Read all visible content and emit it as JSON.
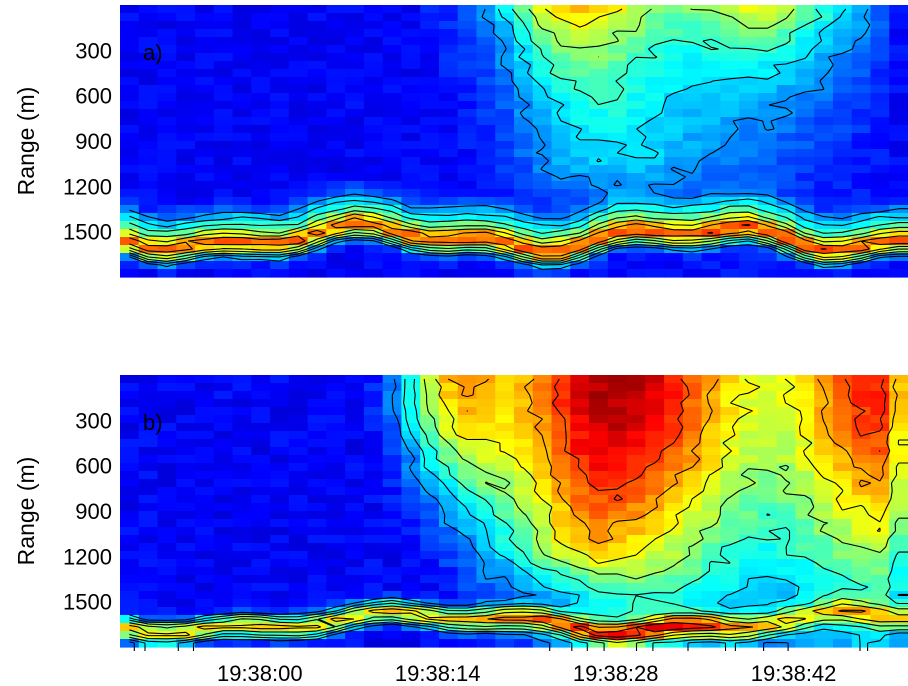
{
  "chart_data": [
    {
      "type": "heatmap",
      "panel_label": "a)",
      "ylabel": "Range (m)",
      "xlabel": "",
      "y_ticks": [
        300,
        600,
        900,
        1200,
        1500
      ],
      "ylim": [
        1800,
        0
      ],
      "x_ticks": [],
      "colormap": "jet",
      "contours": true,
      "grid": false,
      "legend": "none"
    },
    {
      "type": "heatmap",
      "panel_label": "b)",
      "ylabel": "Range (m)",
      "xlabel": "",
      "y_ticks": [
        300,
        600,
        900,
        1200,
        1500
      ],
      "ylim": [
        1800,
        0
      ],
      "x_ticks": [
        "19:38:00",
        "19:38:14",
        "19:38:28",
        "19:38:42"
      ],
      "colormap": "jet",
      "contours": true,
      "grid": false,
      "legend": "none"
    }
  ]
}
